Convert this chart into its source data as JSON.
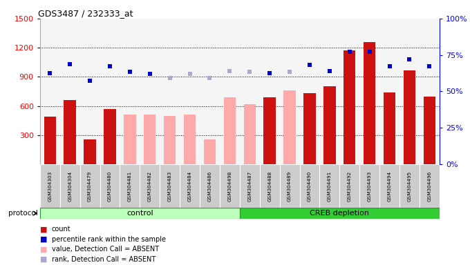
{
  "title": "GDS3487 / 232333_at",
  "samples": [
    "GSM304303",
    "GSM304304",
    "GSM304479",
    "GSM304480",
    "GSM304481",
    "GSM304482",
    "GSM304483",
    "GSM304484",
    "GSM304486",
    "GSM304498",
    "GSM304487",
    "GSM304488",
    "GSM304489",
    "GSM304490",
    "GSM304491",
    "GSM304492",
    "GSM304493",
    "GSM304494",
    "GSM304495",
    "GSM304496"
  ],
  "bar_values": [
    490,
    660,
    255,
    570,
    510,
    510,
    500,
    510,
    255,
    690,
    620,
    690,
    760,
    730,
    800,
    1170,
    1260,
    740,
    970,
    700
  ],
  "bar_absent": [
    false,
    false,
    false,
    false,
    true,
    true,
    true,
    true,
    true,
    true,
    true,
    false,
    true,
    false,
    false,
    false,
    false,
    false,
    false,
    false
  ],
  "dot_values": [
    940,
    1030,
    860,
    1010,
    950,
    930,
    890,
    930,
    890,
    960,
    950,
    940,
    950,
    1020,
    960,
    1160,
    1160,
    1010,
    1080,
    1010
  ],
  "dot_absent": [
    false,
    false,
    false,
    false,
    false,
    false,
    true,
    true,
    true,
    true,
    true,
    false,
    true,
    false,
    false,
    false,
    false,
    false,
    false,
    false
  ],
  "left_ylim": [
    0,
    1500
  ],
  "left_yticks": [
    300,
    600,
    900,
    1200,
    1500
  ],
  "right_ylim": [
    0,
    100
  ],
  "right_yticks": [
    0,
    25,
    50,
    75,
    100
  ],
  "right_yticklabels": [
    "0%",
    "25%",
    "50%",
    "75%",
    "100%"
  ],
  "bar_color_present": "#cc1111",
  "bar_color_absent": "#ffaaaa",
  "dot_color_present": "#0000cc",
  "dot_color_absent": "#aaaacc",
  "background_color": "#ffffff",
  "protocol_box_color_control": "#bbffbb",
  "protocol_box_color_creb": "#33cc33",
  "xlabels_bg": "#cccccc",
  "legend": [
    {
      "color": "#cc1111",
      "label": "count"
    },
    {
      "color": "#0000cc",
      "label": "percentile rank within the sample"
    },
    {
      "color": "#ffaaaa",
      "label": "value, Detection Call = ABSENT"
    },
    {
      "color": "#aaaacc",
      "label": "rank, Detection Call = ABSENT"
    }
  ],
  "control_count": 10,
  "total_count": 20
}
